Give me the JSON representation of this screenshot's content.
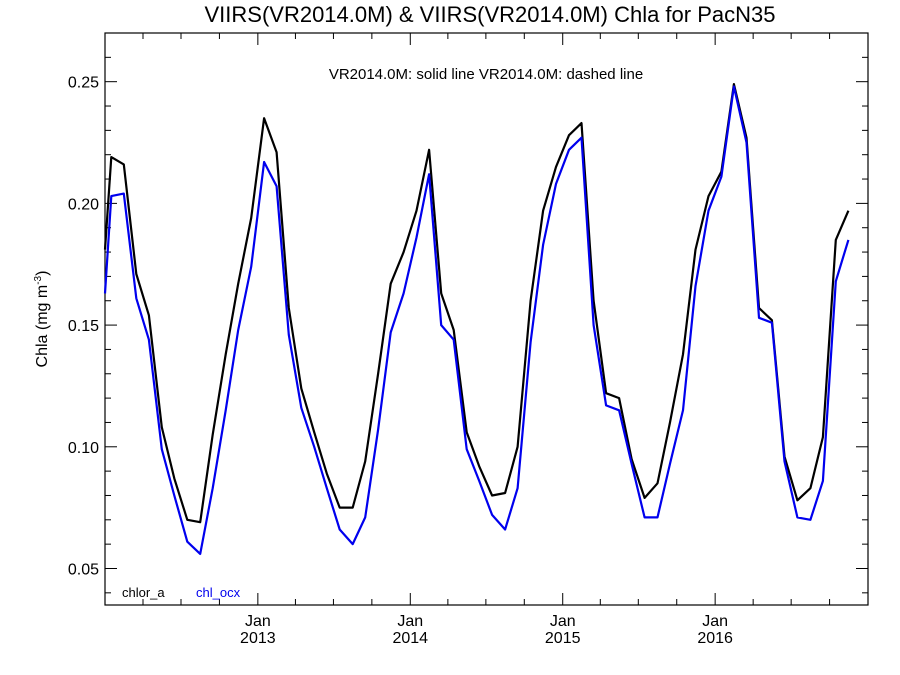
{
  "chart_data": {
    "type": "line",
    "title": "VIIRS(VR2014.0M) & VIIRS(VR2014.0M)  Chla for PacN35",
    "annotation": "VR2014.0M: solid line   VR2014.0M: dashed line",
    "ylabel": "Chla (mg m",
    "ylabel_sup": "-3",
    "ylabel_close": ")",
    "ylim": [
      0.035,
      0.27
    ],
    "yticks": [
      "0.05",
      "0.10",
      "0.15",
      "0.20",
      "0.25"
    ],
    "xlim": [
      "2012-01-01",
      "2017-01-01"
    ],
    "xticks": [
      {
        "date": "2013-01-01",
        "month": "Jan",
        "year": "2013"
      },
      {
        "date": "2014-01-01",
        "month": "Jan",
        "year": "2014"
      },
      {
        "date": "2015-01-01",
        "month": "Jan",
        "year": "2015"
      },
      {
        "date": "2016-01-01",
        "month": "Jan",
        "year": "2016"
      }
    ],
    "grid": false,
    "legend_position": "bottom-left",
    "series": [
      {
        "name": "chlor_a",
        "color": "#000000",
        "points": [
          [
            "2012-01-01",
            0.181
          ],
          [
            "2012-01-16",
            0.219
          ],
          [
            "2012-02-15",
            0.216
          ],
          [
            "2012-03-16",
            0.171
          ],
          [
            "2012-04-15",
            0.154
          ],
          [
            "2012-05-16",
            0.108
          ],
          [
            "2012-06-15",
            0.087
          ],
          [
            "2012-07-16",
            0.07
          ],
          [
            "2012-08-16",
            0.069
          ],
          [
            "2012-09-15",
            0.105
          ],
          [
            "2012-10-16",
            0.138
          ],
          [
            "2012-11-15",
            0.167
          ],
          [
            "2012-12-16",
            0.194
          ],
          [
            "2013-01-16",
            0.235
          ],
          [
            "2013-02-15",
            0.221
          ],
          [
            "2013-03-16",
            0.157
          ],
          [
            "2013-04-15",
            0.124
          ],
          [
            "2013-05-16",
            0.106
          ],
          [
            "2013-06-15",
            0.089
          ],
          [
            "2013-07-16",
            0.075
          ],
          [
            "2013-08-16",
            0.075
          ],
          [
            "2013-09-15",
            0.094
          ],
          [
            "2013-10-16",
            0.13
          ],
          [
            "2013-11-15",
            0.167
          ],
          [
            "2013-12-16",
            0.18
          ],
          [
            "2014-01-16",
            0.197
          ],
          [
            "2014-02-15",
            0.222
          ],
          [
            "2014-03-16",
            0.163
          ],
          [
            "2014-04-15",
            0.148
          ],
          [
            "2014-05-16",
            0.106
          ],
          [
            "2014-06-15",
            0.092
          ],
          [
            "2014-07-16",
            0.08
          ],
          [
            "2014-08-16",
            0.081
          ],
          [
            "2014-09-15",
            0.1
          ],
          [
            "2014-10-16",
            0.16
          ],
          [
            "2014-11-15",
            0.197
          ],
          [
            "2014-12-16",
            0.215
          ],
          [
            "2015-01-16",
            0.228
          ],
          [
            "2015-02-15",
            0.233
          ],
          [
            "2015-03-16",
            0.16
          ],
          [
            "2015-04-15",
            0.122
          ],
          [
            "2015-05-16",
            0.12
          ],
          [
            "2015-06-15",
            0.095
          ],
          [
            "2015-07-16",
            0.079
          ],
          [
            "2015-08-16",
            0.085
          ],
          [
            "2015-09-15",
            0.11
          ],
          [
            "2015-10-16",
            0.138
          ],
          [
            "2015-11-15",
            0.181
          ],
          [
            "2015-12-16",
            0.203
          ],
          [
            "2016-01-16",
            0.213
          ],
          [
            "2016-02-15",
            0.249
          ],
          [
            "2016-03-16",
            0.227
          ],
          [
            "2016-04-15",
            0.157
          ],
          [
            "2016-05-16",
            0.152
          ],
          [
            "2016-06-15",
            0.096
          ],
          [
            "2016-07-16",
            0.078
          ],
          [
            "2016-08-16",
            0.083
          ],
          [
            "2016-09-15",
            0.104
          ],
          [
            "2016-10-16",
            0.185
          ],
          [
            "2016-11-15",
            0.197
          ]
        ]
      },
      {
        "name": "chl_ocx",
        "color": "#0000ee",
        "points": [
          [
            "2012-01-01",
            0.163
          ],
          [
            "2012-01-16",
            0.203
          ],
          [
            "2012-02-15",
            0.204
          ],
          [
            "2012-03-16",
            0.161
          ],
          [
            "2012-04-15",
            0.144
          ],
          [
            "2012-05-16",
            0.099
          ],
          [
            "2012-06-15",
            0.08
          ],
          [
            "2012-07-16",
            0.061
          ],
          [
            "2012-08-16",
            0.056
          ],
          [
            "2012-09-15",
            0.083
          ],
          [
            "2012-10-16",
            0.115
          ],
          [
            "2012-11-15",
            0.148
          ],
          [
            "2012-12-16",
            0.174
          ],
          [
            "2013-01-16",
            0.217
          ],
          [
            "2013-02-15",
            0.207
          ],
          [
            "2013-03-16",
            0.146
          ],
          [
            "2013-04-15",
            0.116
          ],
          [
            "2013-05-16",
            0.1
          ],
          [
            "2013-06-15",
            0.083
          ],
          [
            "2013-07-16",
            0.066
          ],
          [
            "2013-08-16",
            0.06
          ],
          [
            "2013-09-15",
            0.071
          ],
          [
            "2013-10-16",
            0.107
          ],
          [
            "2013-11-15",
            0.147
          ],
          [
            "2013-12-16",
            0.163
          ],
          [
            "2014-01-16",
            0.186
          ],
          [
            "2014-02-15",
            0.212
          ],
          [
            "2014-03-16",
            0.15
          ],
          [
            "2014-04-15",
            0.144
          ],
          [
            "2014-05-16",
            0.099
          ],
          [
            "2014-06-15",
            0.086
          ],
          [
            "2014-07-16",
            0.072
          ],
          [
            "2014-08-16",
            0.066
          ],
          [
            "2014-09-15",
            0.083
          ],
          [
            "2014-10-16",
            0.143
          ],
          [
            "2014-11-15",
            0.183
          ],
          [
            "2014-12-16",
            0.208
          ],
          [
            "2015-01-16",
            0.222
          ],
          [
            "2015-02-15",
            0.227
          ],
          [
            "2015-03-16",
            0.15
          ],
          [
            "2015-04-15",
            0.117
          ],
          [
            "2015-05-16",
            0.115
          ],
          [
            "2015-06-15",
            0.093
          ],
          [
            "2015-07-16",
            0.071
          ],
          [
            "2015-08-16",
            0.071
          ],
          [
            "2015-09-15",
            0.093
          ],
          [
            "2015-10-16",
            0.115
          ],
          [
            "2015-11-15",
            0.166
          ],
          [
            "2015-12-16",
            0.197
          ],
          [
            "2016-01-16",
            0.211
          ],
          [
            "2016-02-15",
            0.248
          ],
          [
            "2016-03-16",
            0.225
          ],
          [
            "2016-04-15",
            0.153
          ],
          [
            "2016-05-16",
            0.151
          ],
          [
            "2016-06-15",
            0.094
          ],
          [
            "2016-07-16",
            0.071
          ],
          [
            "2016-08-16",
            0.07
          ],
          [
            "2016-09-15",
            0.086
          ],
          [
            "2016-10-16",
            0.168
          ],
          [
            "2016-11-15",
            0.185
          ]
        ]
      }
    ]
  }
}
